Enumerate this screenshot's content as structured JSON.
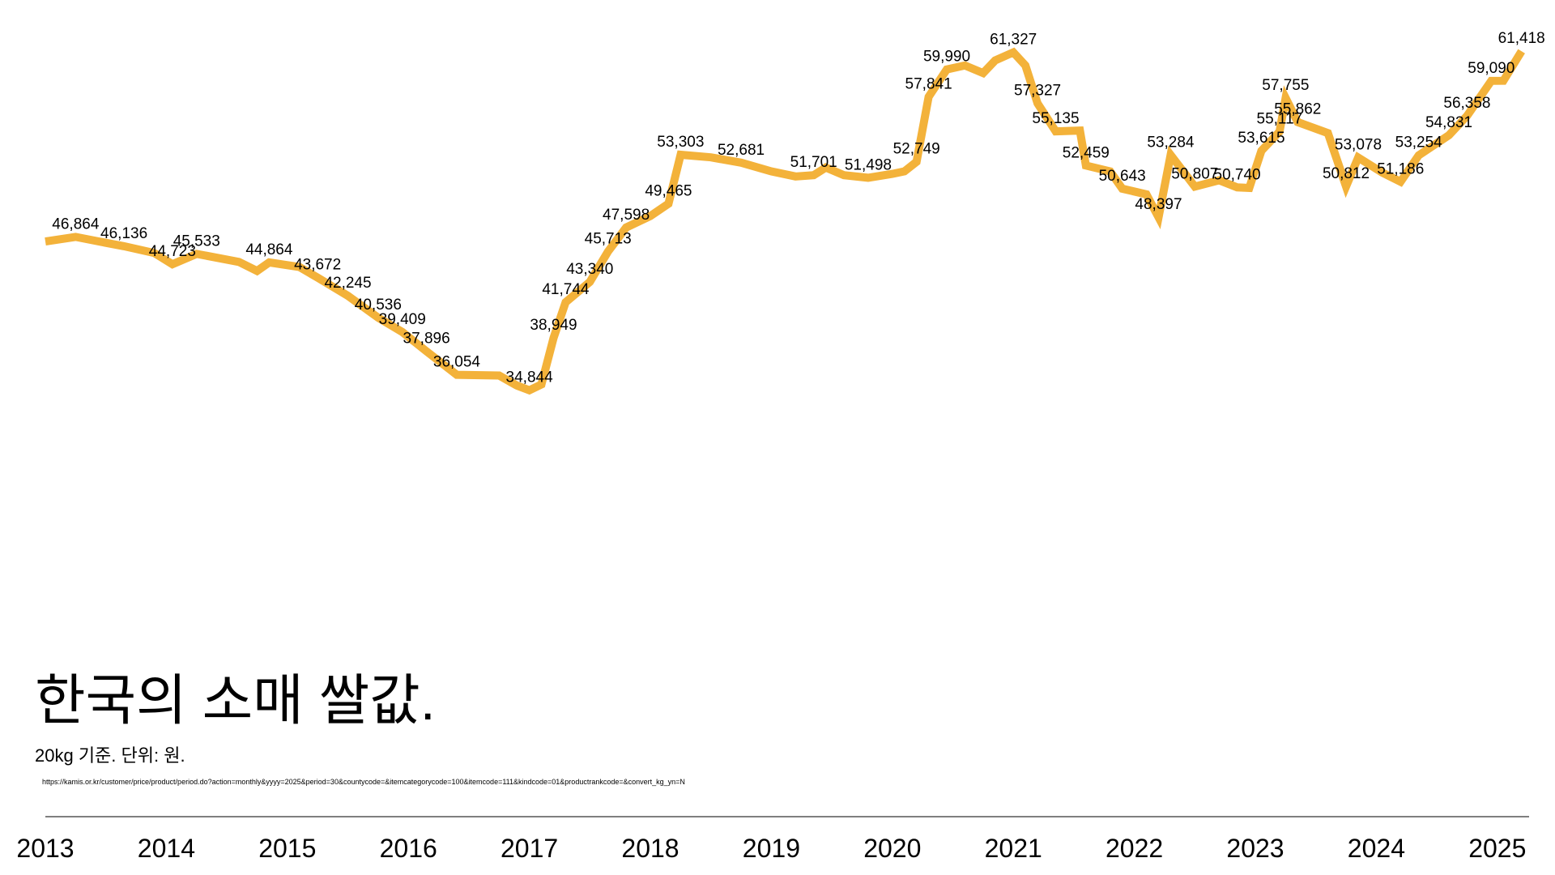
{
  "chart_data": {
    "type": "line",
    "title": "한국의 소매 쌀값.",
    "subtitle": "20kg 기준. 단위: 원.",
    "source": "https://kamis.or.kr/customer/price/product/period.do?action=monthly&yyyy=2025&period=30&countycode=&itemcategorycode=100&itemcode=111&kindcode=01&productrankcode=&convert_kg_yn=N",
    "color": "#f3b23a",
    "x": [
      2013.0,
      2013.25,
      2013.5,
      2013.65,
      2013.9,
      2014.05,
      2014.25,
      2014.6,
      2014.75,
      2014.85,
      2015.1,
      2015.25,
      2015.5,
      2015.75,
      2015.95,
      2016.15,
      2016.4,
      2016.75,
      2016.9,
      2017.0,
      2017.1,
      2017.2,
      2017.3,
      2017.5,
      2017.65,
      2017.8,
      2018.0,
      2018.15,
      2018.25,
      2018.5,
      2018.75,
      2019.0,
      2019.2,
      2019.35,
      2019.45,
      2019.6,
      2019.8,
      2020.0,
      2020.1,
      2020.2,
      2020.3,
      2020.45,
      2020.6,
      2020.75,
      2020.85,
      2021.0,
      2021.1,
      2021.2,
      2021.35,
      2021.55,
      2021.6,
      2021.8,
      2021.9,
      2022.1,
      2022.2,
      2022.3,
      2022.5,
      2022.7,
      2022.85,
      2022.95,
      2023.05,
      2023.2,
      2023.25,
      2023.35,
      2023.6,
      2023.75,
      2023.85,
      2024.05,
      2024.2,
      2024.35,
      2024.6,
      2024.75,
      2024.95,
      2025.05,
      2025.2
    ],
    "values": [
      46500,
      46864,
      46400,
      46136,
      45600,
      44723,
      45533,
      44900,
      44200,
      44864,
      44500,
      43672,
      42245,
      40536,
      39409,
      37896,
      36054,
      36000,
      35200,
      34844,
      35300,
      38949,
      41744,
      43340,
      45713,
      47598,
      48500,
      49465,
      53303,
      53100,
      52681,
      52000,
      51600,
      51701,
      52300,
      51700,
      51498,
      51800,
      52000,
      52749,
      57841,
      59990,
      60300,
      59700,
      60700,
      61327,
      60300,
      57327,
      55135,
      55200,
      52459,
      52000,
      50643,
      50200,
      48397,
      53284,
      50807,
      51300,
      50740,
      50700,
      53615,
      55117,
      57755,
      55862,
      55000,
      50812,
      53078,
      51900,
      51186,
      53254,
      54831,
      56358,
      59090,
      59100,
      61418
    ],
    "value_labels": [
      null,
      "46,864",
      null,
      "46,136",
      null,
      "44,723",
      "45,533",
      null,
      null,
      "44,864",
      null,
      "43,672",
      "42,245",
      "40,536",
      "39,409",
      "37,896",
      "36,054",
      null,
      null,
      "34,844",
      null,
      "38,949",
      "41,744",
      "43,340",
      "45,713",
      "47,598",
      null,
      "49,465",
      "53,303",
      null,
      "52,681",
      null,
      null,
      "51,701",
      null,
      null,
      "51,498",
      null,
      null,
      "52,749",
      "57,841",
      "59,990",
      null,
      null,
      null,
      "61,327",
      null,
      "57,327",
      "55,135",
      null,
      "52,459",
      null,
      "50,643",
      null,
      "48,397",
      "53,284",
      "50,807",
      null,
      "50,740",
      null,
      "53,615",
      "55,117",
      "57,755",
      "55,862",
      null,
      "50,812",
      "53,078",
      null,
      "51,186",
      "53,254",
      "54,831",
      "56,358",
      "59,090",
      null,
      "61,418"
    ],
    "xlim": [
      2013,
      2025.25
    ],
    "xticks": [
      2013,
      2014,
      2015,
      2016,
      2017,
      2018,
      2019,
      2020,
      2021,
      2022,
      2023,
      2024,
      2025
    ],
    "ylim": [
      30000,
      62000
    ]
  }
}
